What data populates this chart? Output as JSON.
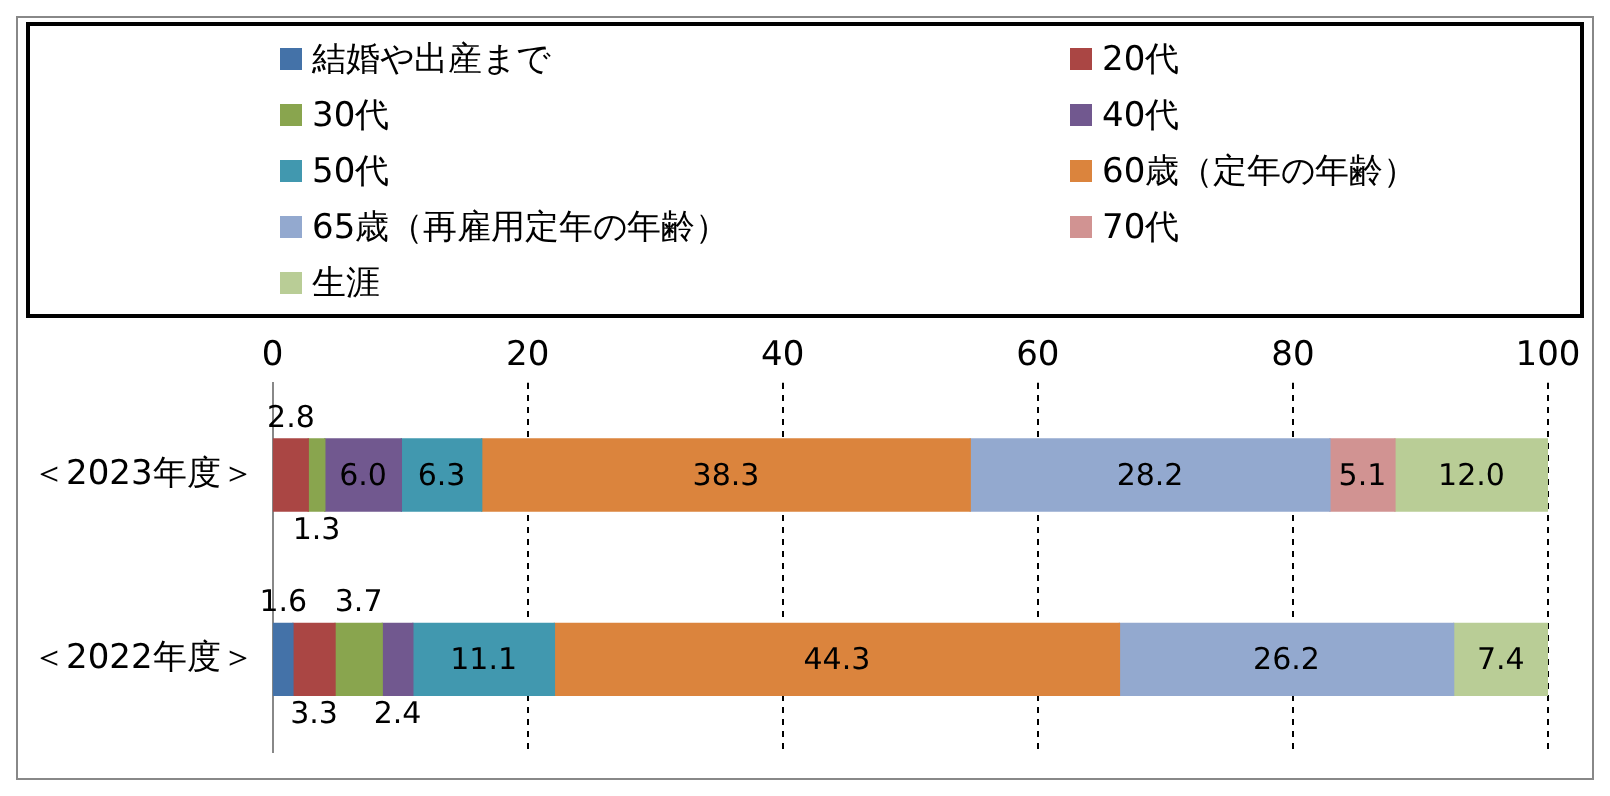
{
  "chart_data": {
    "type": "bar",
    "orientation": "horizontal",
    "stacked": true,
    "categories": [
      "＜2023年度＞",
      "＜2022年度＞"
    ],
    "series": [
      {
        "name": "結婚や出産まで",
        "color": "#4472a8",
        "values": [
          null,
          1.6
        ],
        "value_labels": [
          null,
          "1.6"
        ]
      },
      {
        "name": "20代",
        "color": "#aa4644",
        "values": [
          2.8,
          3.3
        ],
        "value_labels": [
          "2.8",
          "3.3"
        ]
      },
      {
        "name": "30代",
        "color": "#89a54e",
        "values": [
          1.3,
          3.7
        ],
        "value_labels": [
          "1.3",
          "3.7"
        ]
      },
      {
        "name": "40代",
        "color": "#71588f",
        "values": [
          6.0,
          2.4
        ],
        "value_labels": [
          "6.0",
          "2.4"
        ]
      },
      {
        "name": "50代",
        "color": "#4198af",
        "values": [
          6.3,
          11.1
        ],
        "value_labels": [
          "6.3",
          "11.1"
        ]
      },
      {
        "name": "60歳（定年の年齢）",
        "color": "#db843d",
        "values": [
          38.3,
          44.3
        ],
        "value_labels": [
          "38.3",
          "44.3"
        ]
      },
      {
        "name": "65歳（再雇用定年の年齢）",
        "color": "#93a9cf",
        "values": [
          28.2,
          26.2
        ],
        "value_labels": [
          "28.2",
          "26.2"
        ]
      },
      {
        "name": "70代",
        "color": "#d19392",
        "values": [
          5.1,
          null
        ],
        "value_labels": [
          "5.1",
          null
        ]
      },
      {
        "name": "生涯",
        "color": "#b9cd96",
        "values": [
          12.0,
          7.4
        ],
        "value_labels": [
          "12.0",
          "7.4"
        ]
      }
    ],
    "xlim": [
      0,
      100
    ],
    "xticks": [
      0,
      20,
      40,
      60,
      80,
      100
    ],
    "grid": "x",
    "legend": "top"
  }
}
